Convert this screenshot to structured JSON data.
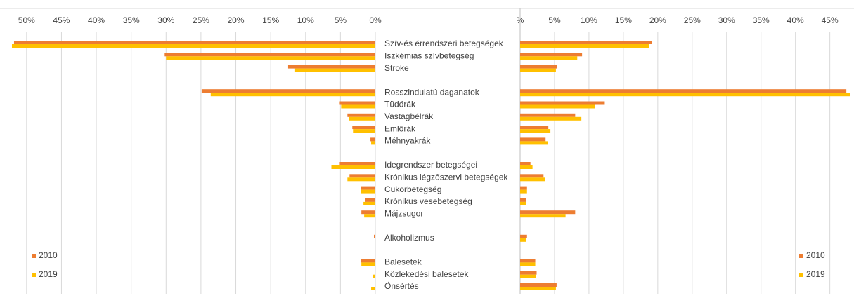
{
  "chart_data": [
    {
      "type": "bar",
      "orientation": "horizontal",
      "direction": "reversed",
      "categories": [
        "Szív-és érrendszeri betegségek",
        "Iszkémiás szívbetegség",
        "Stroke",
        null,
        "Rosszindulatú daganatok",
        "Tüdőrák",
        "Vastagbélrák",
        "Emlőrák",
        "Méhnyakrák",
        null,
        "Idegrendszer betegségei",
        "Krónikus légzőszervi betegségek",
        "Cukorbetegség",
        "Krónikus vesebetegség",
        "Májzsugor",
        null,
        "Alkoholizmus",
        null,
        "Balesetek",
        "Közlekedési balesetek",
        "Önsértés"
      ],
      "series": [
        {
          "name": "2010",
          "color": "#ED7D31",
          "values": [
            51.8,
            30.2,
            12.5,
            null,
            24.9,
            5.1,
            4.0,
            3.3,
            0.7,
            null,
            5.1,
            3.7,
            2.1,
            1.5,
            2.0,
            null,
            0.2,
            null,
            2.1,
            0,
            0
          ]
        },
        {
          "name": "2019",
          "color": "#FFC000",
          "values": [
            52.1,
            30.0,
            11.6,
            null,
            23.6,
            4.9,
            3.8,
            3.2,
            0.6,
            null,
            6.3,
            4.0,
            2.1,
            1.7,
            1.6,
            null,
            0.1,
            null,
            2.0,
            0.3,
            0.6
          ]
        }
      ],
      "xlim": [
        0,
        52.3
      ],
      "xticks": [
        {
          "value": 0,
          "label": "0%"
        },
        {
          "value": 5,
          "label": "5%"
        },
        {
          "value": 10,
          "label": "10%"
        },
        {
          "value": 15,
          "label": "15%"
        },
        {
          "value": 20,
          "label": "20%"
        },
        {
          "value": 25,
          "label": "25%"
        },
        {
          "value": 30,
          "label": "30%"
        },
        {
          "value": 35,
          "label": "35%"
        },
        {
          "value": 40,
          "label": "40%"
        },
        {
          "value": 45,
          "label": "45%"
        },
        {
          "value": 50,
          "label": "50%"
        }
      ],
      "grid": true,
      "legend": "bottom-left"
    },
    {
      "type": "bar",
      "orientation": "horizontal",
      "series": [
        {
          "name": "2010",
          "color": "#ED7D31",
          "values": [
            19.2,
            9.0,
            5.4,
            null,
            47.4,
            12.3,
            8.0,
            4.1,
            3.7,
            null,
            1.5,
            3.4,
            1.0,
            0.9,
            8.0,
            null,
            1.0,
            null,
            2.2,
            2.4,
            5.3
          ]
        },
        {
          "name": "2019",
          "color": "#FFC000",
          "values": [
            18.7,
            8.3,
            5.2,
            null,
            47.9,
            10.9,
            8.9,
            4.4,
            4.0,
            null,
            1.8,
            3.6,
            1.0,
            0.9,
            6.6,
            null,
            0.9,
            null,
            2.2,
            2.3,
            5.2
          ]
        }
      ],
      "xlim": [
        0,
        48
      ],
      "xticks": [
        {
          "value": 0,
          "label": "%"
        },
        {
          "value": 5,
          "label": "5%"
        },
        {
          "value": 10,
          "label": "10%"
        },
        {
          "value": 15,
          "label": "15%"
        },
        {
          "value": 20,
          "label": "20%"
        },
        {
          "value": 25,
          "label": "25%"
        },
        {
          "value": 30,
          "label": "30%"
        },
        {
          "value": 35,
          "label": "35%"
        },
        {
          "value": 40,
          "label": "40%"
        },
        {
          "value": 45,
          "label": "45%"
        }
      ],
      "grid": true,
      "legend": "bottom-right"
    }
  ]
}
